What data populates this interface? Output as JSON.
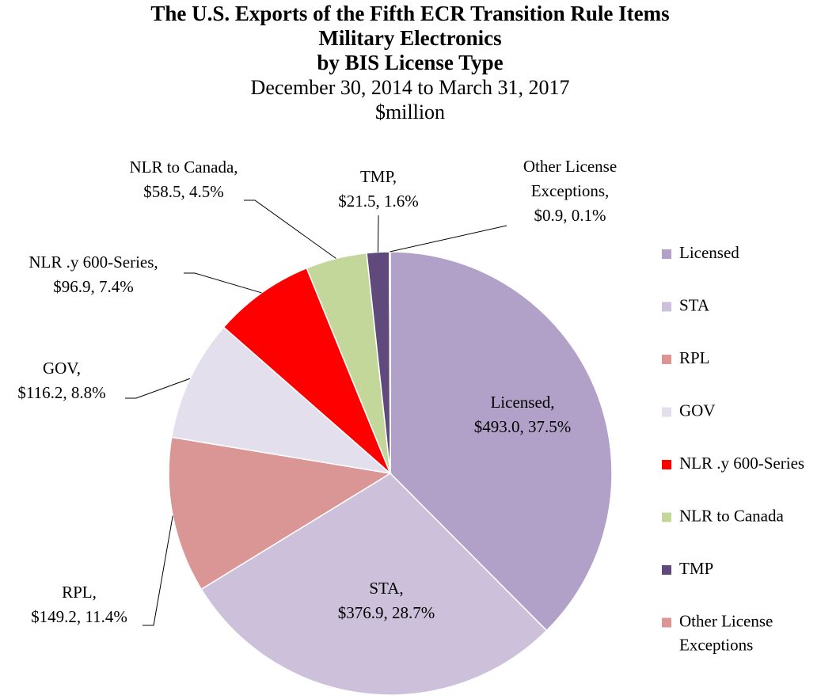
{
  "chart_data": {
    "type": "pie",
    "title": [
      "The U.S. Exports of the Fifth ECR Transition Rule Items",
      "Military Electronics",
      "by BIS License Type"
    ],
    "subtitle": [
      "December 30, 2014 to March 31, 2017",
      "$million"
    ],
    "categories": [
      "Licensed",
      "STA",
      "RPL",
      "GOV",
      "NLR .y 600-Series",
      "NLR to Canada",
      "TMP",
      "Other License Exceptions"
    ],
    "values": [
      493.0,
      376.9,
      149.2,
      116.2,
      96.9,
      58.5,
      21.5,
      0.9
    ],
    "value_labels": [
      [
        "Licensed,",
        "$493.0, 37.5%"
      ],
      [
        "STA,",
        "$376.9, 28.7%"
      ],
      [
        "RPL,",
        "$149.2, 11.4%"
      ],
      [
        "GOV,",
        "$116.2, 8.8%"
      ],
      [
        "NLR .y 600-Series,",
        "$96.9, 7.4%"
      ],
      [
        "NLR to Canada,",
        "$58.5, 4.5%"
      ],
      [
        "TMP,",
        "$21.5, 1.6%"
      ],
      [
        "Other License",
        "Exceptions,",
        "$0.9, 0.1%"
      ]
    ],
    "colors": [
      "#b1a0c7",
      "#ccc0da",
      "#da9694",
      "#e4dfec",
      "#ff0000",
      "#c4d79b",
      "#604a7b",
      "#da9694"
    ],
    "legend": "right"
  }
}
